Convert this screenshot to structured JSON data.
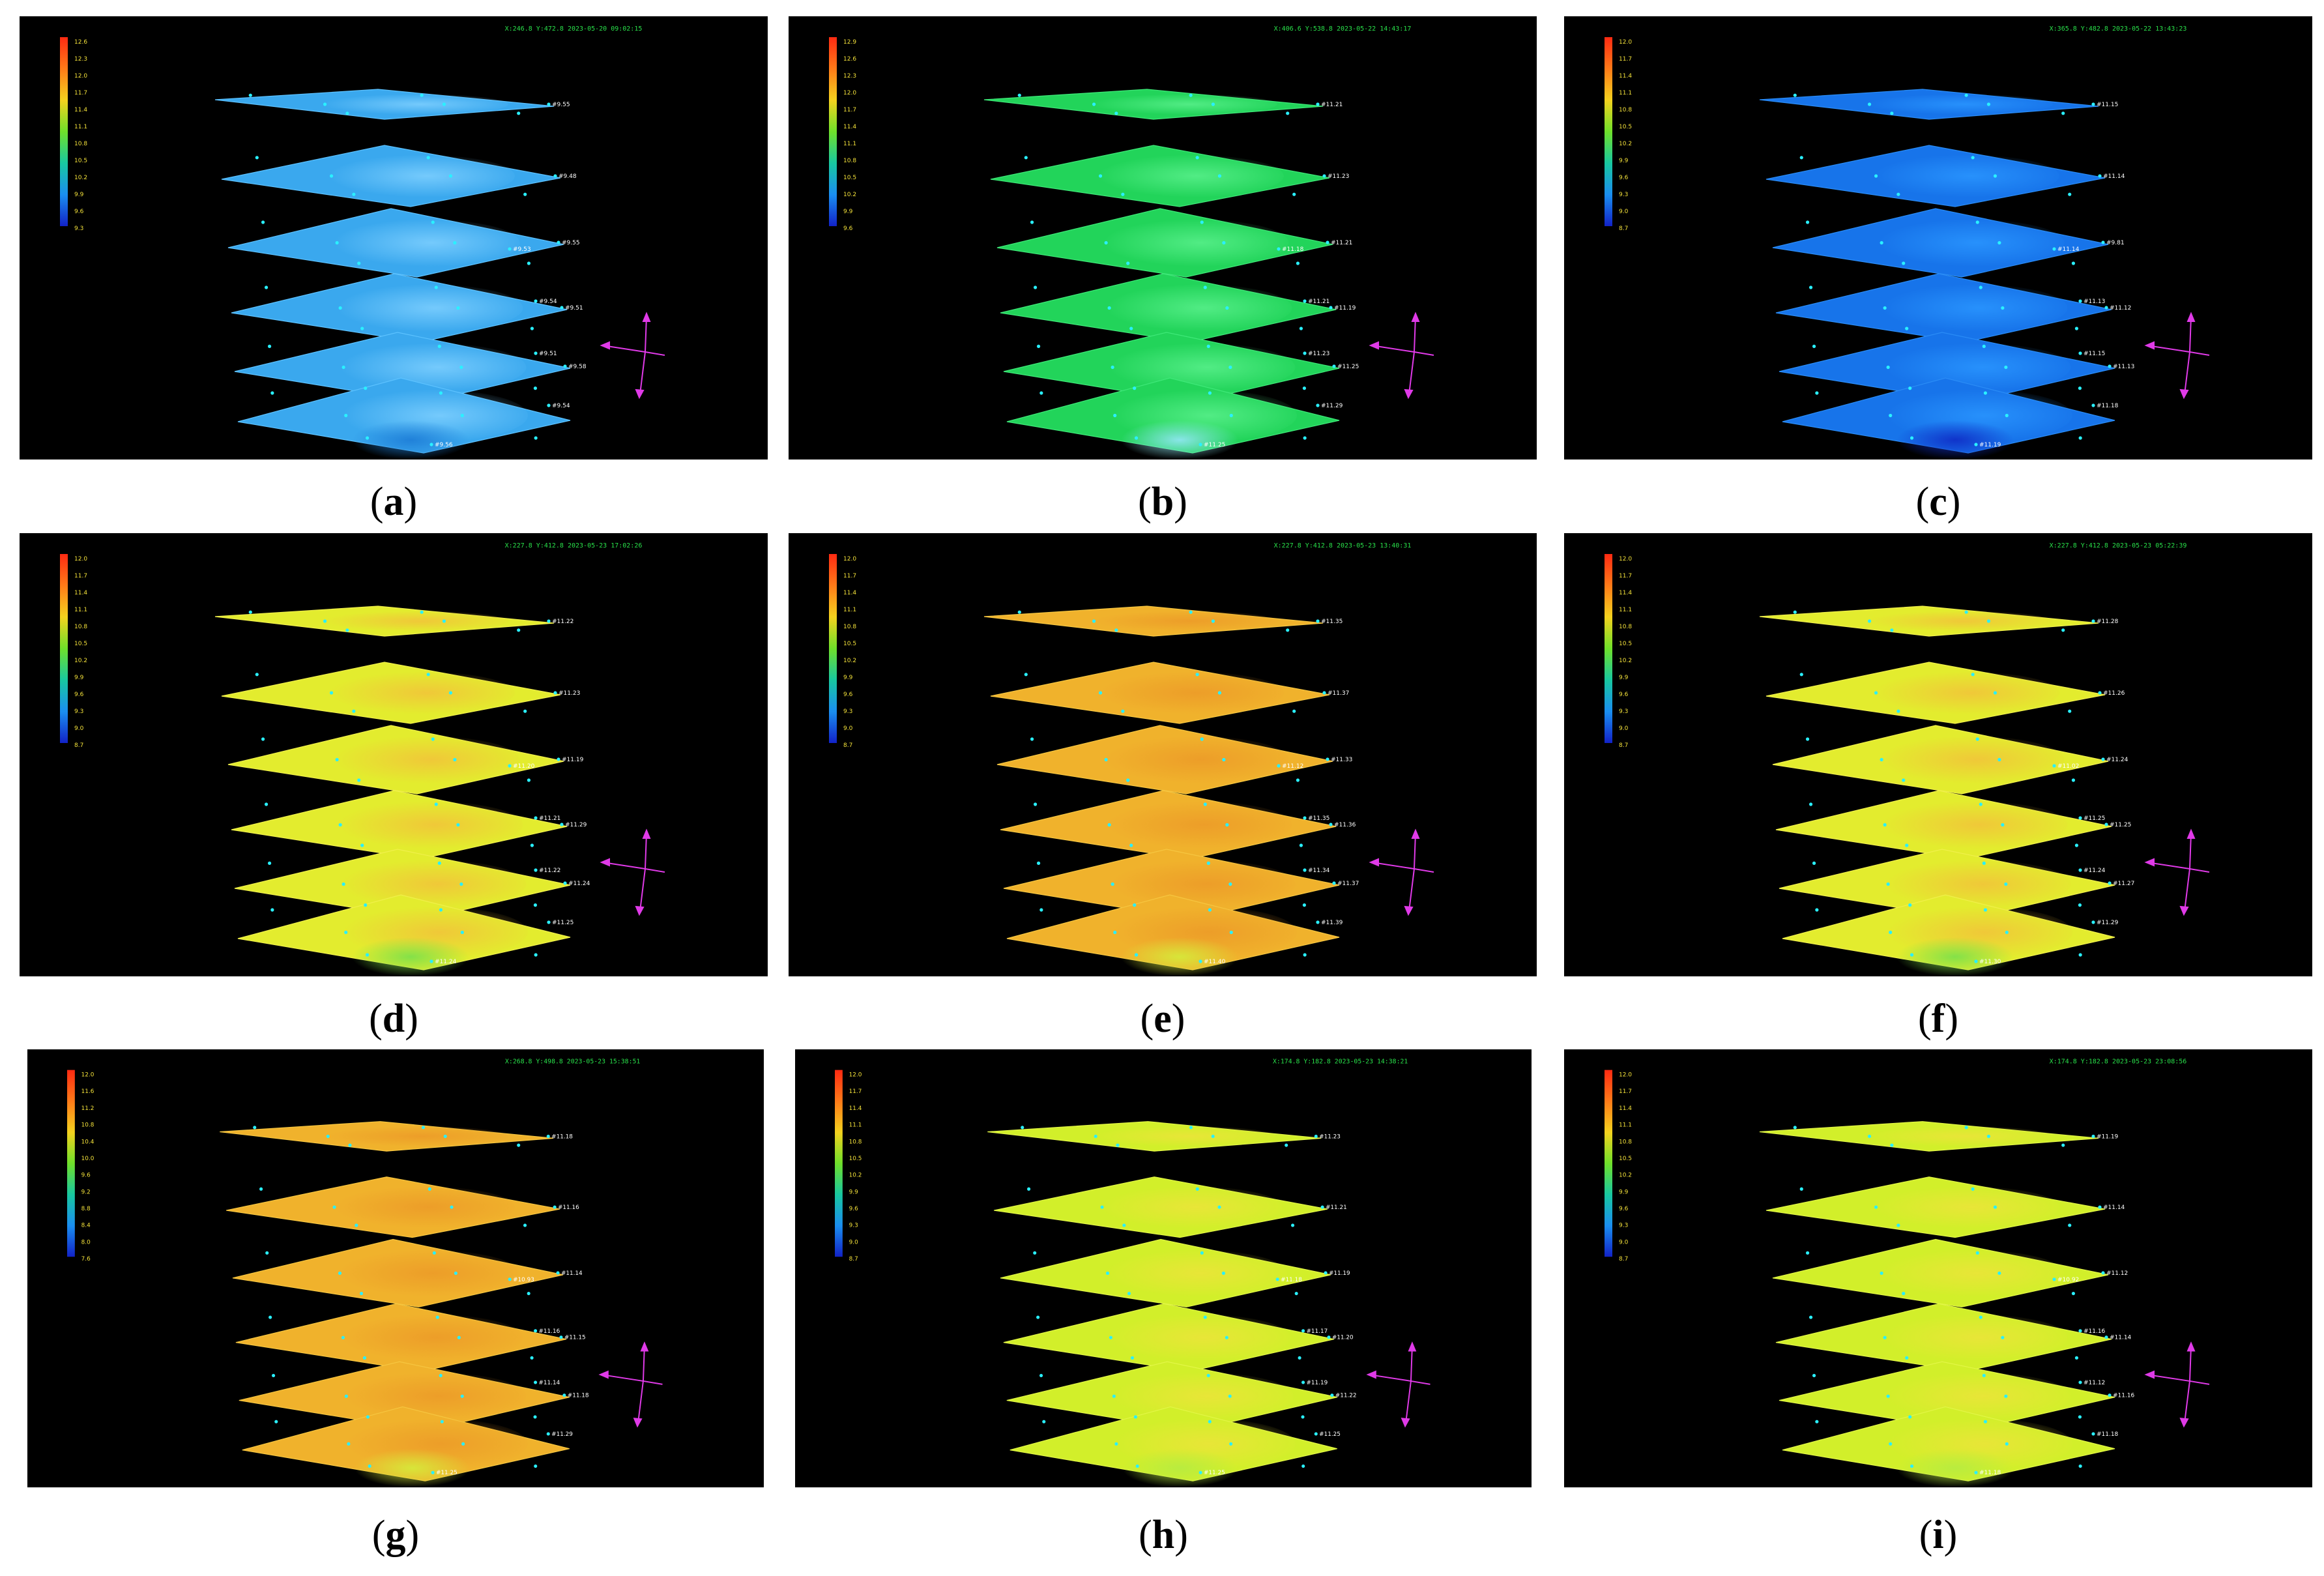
{
  "panels": [
    {
      "letter": "a",
      "theme": "blue",
      "header": "X:246.8  Y:472.8   2023-05-20 09:02:15",
      "scale": [
        "12.6",
        "12.3",
        "12.0",
        "11.7",
        "11.4",
        "11.1",
        "10.8",
        "10.5",
        "10.2",
        "9.9",
        "9.6",
        "9.3"
      ],
      "labels": [
        "#9.55",
        "#9.48",
        "#9.55",
        "#9.53",
        "#9.54",
        "#9.51",
        "#9.51",
        "#9.58",
        "#9.54",
        "#9.56"
      ]
    },
    {
      "letter": "b",
      "theme": "green",
      "header": "X:406.6  Y:538.8   2023-05-22 14:43:17",
      "scale": [
        "12.9",
        "12.6",
        "12.3",
        "12.0",
        "11.7",
        "11.4",
        "11.1",
        "10.8",
        "10.5",
        "10.2",
        "9.9",
        "9.6"
      ],
      "labels": [
        "#11.21",
        "#11.23",
        "#11.21",
        "#11.18",
        "#11.21",
        "#11.19",
        "#11.23",
        "#11.25",
        "#11.29",
        "#11.25"
      ]
    },
    {
      "letter": "c",
      "theme": "deepblue",
      "header": "X:365.8  Y:482.8   2023-05-22 13:43:23",
      "scale": [
        "12.0",
        "11.7",
        "11.4",
        "11.1",
        "10.8",
        "10.5",
        "10.2",
        "9.9",
        "9.6",
        "9.3",
        "9.0",
        "8.7"
      ],
      "labels": [
        "#11.15",
        "#11.14",
        "#9.81",
        "#11.14",
        "#11.13",
        "#11.12",
        "#11.15",
        "#11.13",
        "#11.18",
        "#11.19"
      ]
    },
    {
      "letter": "d",
      "theme": "yellow",
      "header": "X:227.8  Y:412.8   2023-05-23 17:02:26",
      "scale": [
        "12.0",
        "11.7",
        "11.4",
        "11.1",
        "10.8",
        "10.5",
        "10.2",
        "9.9",
        "9.6",
        "9.3",
        "9.0",
        "8.7"
      ],
      "labels": [
        "#11.22",
        "#11.23",
        "#11.19",
        "#11.20",
        "#11.21",
        "#11.29",
        "#11.22",
        "#11.24",
        "#11.25",
        "#11.24"
      ]
    },
    {
      "letter": "e",
      "theme": "orange",
      "header": "X:227.8  Y:412.8   2023-05-23 13:40:31",
      "scale": [
        "12.0",
        "11.7",
        "11.4",
        "11.1",
        "10.8",
        "10.5",
        "10.2",
        "9.9",
        "9.6",
        "9.3",
        "9.0",
        "8.7"
      ],
      "labels": [
        "#11.35",
        "#11.37",
        "#11.33",
        "#11.12",
        "#11.35",
        "#11.36",
        "#11.34",
        "#11.37",
        "#11.39",
        "#11.40"
      ]
    },
    {
      "letter": "f",
      "theme": "yellow",
      "header": "X:227.8  Y:412.8   2023-05-23 05:22:39",
      "scale": [
        "12.0",
        "11.7",
        "11.4",
        "11.1",
        "10.8",
        "10.5",
        "10.2",
        "9.9",
        "9.6",
        "9.3",
        "9.0",
        "8.7"
      ],
      "labels": [
        "#11.28",
        "#11.26",
        "#11.24",
        "#11.02",
        "#11.25",
        "#11.25",
        "#11.24",
        "#11.27",
        "#11.29",
        "#11.30"
      ]
    },
    {
      "letter": "g",
      "theme": "orange",
      "header": "X:268.8  Y:498.8   2023-05-23 15:38:51",
      "scale": [
        "12.0",
        "11.6",
        "11.2",
        "10.8",
        "10.4",
        "10.0",
        "9.6",
        "9.2",
        "8.8",
        "8.4",
        "8.0",
        "7.6"
      ],
      "labels": [
        "#11.18",
        "#11.16",
        "#11.14",
        "#10.93",
        "#11.16",
        "#11.15",
        "#11.14",
        "#11.18",
        "#11.29",
        "#11.25"
      ]
    },
    {
      "letter": "h",
      "theme": "lime",
      "header": "X:174.8  Y:182.8   2023-05-23 14:38:21",
      "scale": [
        "12.0",
        "11.7",
        "11.4",
        "11.1",
        "10.8",
        "10.5",
        "10.2",
        "9.9",
        "9.6",
        "9.3",
        "9.0",
        "8.7"
      ],
      "labels": [
        "#11.23",
        "#11.21",
        "#11.19",
        "#11.18",
        "#11.17",
        "#11.20",
        "#11.19",
        "#11.22",
        "#11.25",
        "#11.25"
      ]
    },
    {
      "letter": "i",
      "theme": "lime",
      "header": "X:174.8  Y:182.8   2023-05-23 23:08:56",
      "scale": [
        "12.0",
        "11.7",
        "11.4",
        "11.1",
        "10.8",
        "10.5",
        "10.2",
        "9.9",
        "9.6",
        "9.3",
        "9.0",
        "8.7"
      ],
      "labels": [
        "#11.19",
        "#11.14",
        "#11.12",
        "#10.92",
        "#11.16",
        "#11.14",
        "#11.12",
        "#11.16",
        "#11.18",
        "#11.18"
      ]
    }
  ],
  "themes": {
    "blue": {
      "fill": "#3aa8ee",
      "edge": "#5cc2ff",
      "hot": "#7fd0ff",
      "cold": "#1f7fd8"
    },
    "green": {
      "fill": "#22d45a",
      "edge": "#3ee878",
      "hot": "#5af08c",
      "cold": "#8fe6f0"
    },
    "deepblue": {
      "fill": "#1774ea",
      "edge": "#2a8cf6",
      "hot": "#2a96ff",
      "cold": "#1030c8"
    },
    "yellow": {
      "fill": "#e3ec2e",
      "edge": "#f0f04a",
      "hot": "#f2c23a",
      "cold": "#7fe04a"
    },
    "orange": {
      "fill": "#f0b22c",
      "edge": "#f6c640",
      "hot": "#ec9a28",
      "cold": "#d6e83a"
    },
    "lime": {
      "fill": "#d2ef2a",
      "edge": "#e2f646",
      "hot": "#ece43a",
      "cold": "#b8ec40"
    }
  },
  "legend_gradient": [
    "#ff2a12",
    "#ff7a18",
    "#f4d21e",
    "#6fe02a",
    "#18c8a0",
    "#1a8ef0",
    "#1222c8"
  ]
}
